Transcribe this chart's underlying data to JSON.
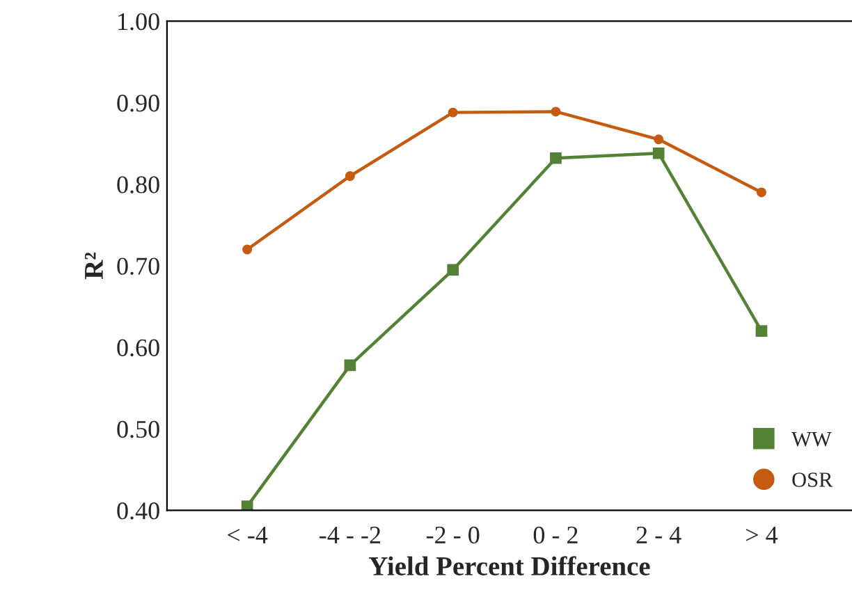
{
  "chart_data": {
    "type": "line",
    "xlabel": "Yield Percent Difference",
    "ylabel": "R²",
    "categories": [
      "< -4",
      "-4 - -2",
      "-2 - 0",
      "0 - 2",
      "2 - 4",
      "> 4"
    ],
    "series": [
      {
        "name": "WW",
        "color": "#538135",
        "marker": "square",
        "values": [
          0.405,
          0.578,
          0.695,
          0.832,
          0.838,
          0.62
        ]
      },
      {
        "name": "OSR",
        "color": "#c55a11",
        "marker": "circle",
        "values": [
          0.72,
          0.81,
          0.888,
          0.889,
          0.855,
          0.79
        ]
      }
    ],
    "ylim": [
      0.4,
      1.0
    ],
    "yticks": [
      {
        "value": 0.4,
        "label": "0.40"
      },
      {
        "value": 0.5,
        "label": "0.50"
      },
      {
        "value": 0.6,
        "label": "0.60"
      },
      {
        "value": 0.7,
        "label": "0.70"
      },
      {
        "value": 0.8,
        "label": "0.80"
      },
      {
        "value": 0.9,
        "label": "0.90"
      },
      {
        "value": 1.0,
        "label": "1.00"
      }
    ],
    "grid": false,
    "legend": "bottom right",
    "line_style": "solid"
  }
}
